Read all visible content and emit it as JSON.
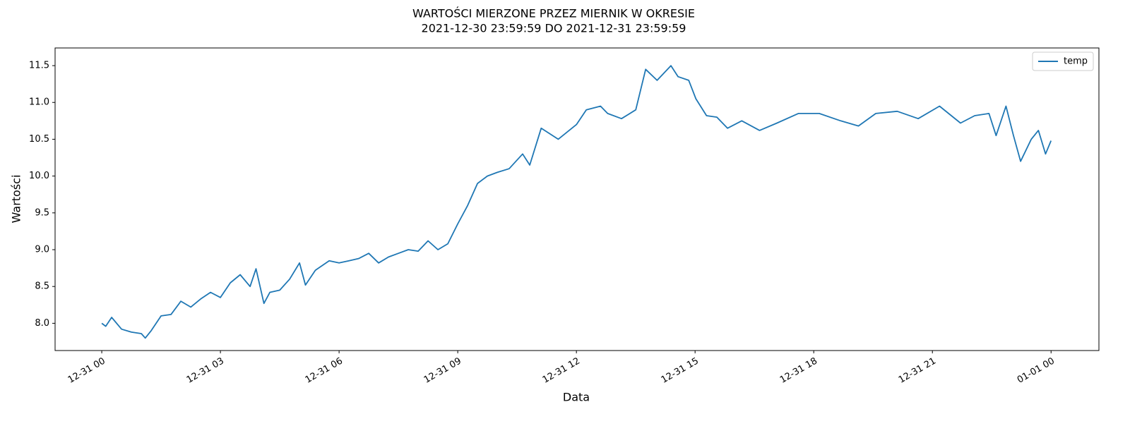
{
  "chart_data": {
    "type": "line",
    "title": "WARTOŚCI MIERZONE PRZEZ MIERNIK W OKRESIE",
    "subtitle": "2021-12-30 23:59:59 DO 2021-12-31 23:59:59",
    "x_label": "Data",
    "y_label": "Wartości",
    "x": [
      0,
      0.1,
      0.25,
      0.5,
      0.75,
      1.0,
      1.1,
      1.25,
      1.5,
      1.75,
      2.0,
      2.25,
      2.5,
      2.75,
      3.0,
      3.25,
      3.5,
      3.75,
      3.9,
      4.1,
      4.25,
      4.5,
      4.75,
      5.0,
      5.15,
      5.4,
      5.75,
      6.0,
      6.25,
      6.5,
      6.75,
      7.0,
      7.25,
      7.5,
      7.75,
      8.0,
      8.25,
      8.5,
      8.75,
      9.0,
      9.25,
      9.5,
      9.75,
      10.0,
      10.3,
      10.64,
      10.82,
      11.11,
      11.54,
      12.0,
      12.25,
      12.61,
      12.79,
      13.14,
      13.5,
      13.75,
      14.04,
      14.39,
      14.57,
      14.84,
      15.02,
      15.29,
      15.55,
      15.82,
      16.18,
      16.63,
      17.07,
      17.61,
      18.14,
      18.68,
      19.13,
      19.57,
      20.11,
      20.64,
      21.18,
      21.71,
      22.07,
      22.43,
      22.61,
      22.86,
      23.05,
      23.23,
      23.5,
      23.68,
      23.86,
      24.0
    ],
    "series": [
      {
        "name": "temp",
        "color": "#1f77b4",
        "values": [
          8.0,
          7.96,
          8.08,
          7.92,
          7.88,
          7.86,
          7.8,
          7.9,
          8.1,
          8.12,
          8.3,
          8.22,
          8.33,
          8.42,
          8.35,
          8.55,
          8.66,
          8.5,
          8.74,
          8.27,
          8.42,
          8.45,
          8.6,
          8.82,
          8.52,
          8.72,
          8.85,
          8.82,
          8.85,
          8.88,
          8.95,
          8.82,
          8.9,
          8.95,
          9.0,
          8.98,
          9.12,
          9.0,
          9.08,
          9.35,
          9.6,
          9.9,
          10.0,
          10.05,
          10.1,
          10.3,
          10.15,
          10.65,
          10.5,
          10.7,
          10.9,
          10.95,
          10.85,
          10.78,
          10.9,
          11.45,
          11.3,
          11.5,
          11.35,
          11.3,
          11.05,
          10.82,
          10.8,
          10.65,
          10.75,
          10.62,
          10.72,
          10.85,
          10.85,
          10.75,
          10.68,
          10.85,
          10.88,
          10.78,
          10.95,
          10.72,
          10.82,
          10.85,
          10.55,
          10.95,
          10.55,
          10.2,
          10.5,
          10.62,
          10.3,
          10.48
        ]
      }
    ],
    "xlim": [
      -1.18,
      25.21
    ],
    "xticks": [
      {
        "value": 0,
        "label": "12-31 00"
      },
      {
        "value": 3,
        "label": "12-31 03"
      },
      {
        "value": 6,
        "label": "12-31 06"
      },
      {
        "value": 9,
        "label": "12-31 09"
      },
      {
        "value": 12,
        "label": "12-31 12"
      },
      {
        "value": 15,
        "label": "12-31 15"
      },
      {
        "value": 18,
        "label": "12-31 18"
      },
      {
        "value": 21,
        "label": "12-31 21"
      },
      {
        "value": 24,
        "label": "01-01 00"
      }
    ],
    "ylim": [
      7.63,
      11.74
    ],
    "yticks": [
      {
        "value": 8,
        "label": "8.0"
      },
      8.5,
      {
        "value": 9,
        "label": "9.0"
      },
      9.5,
      {
        "value": 10,
        "label": "10.0"
      },
      10.5,
      {
        "value": 11,
        "label": "11.0"
      },
      11.5
    ],
    "legend": "upper right"
  }
}
